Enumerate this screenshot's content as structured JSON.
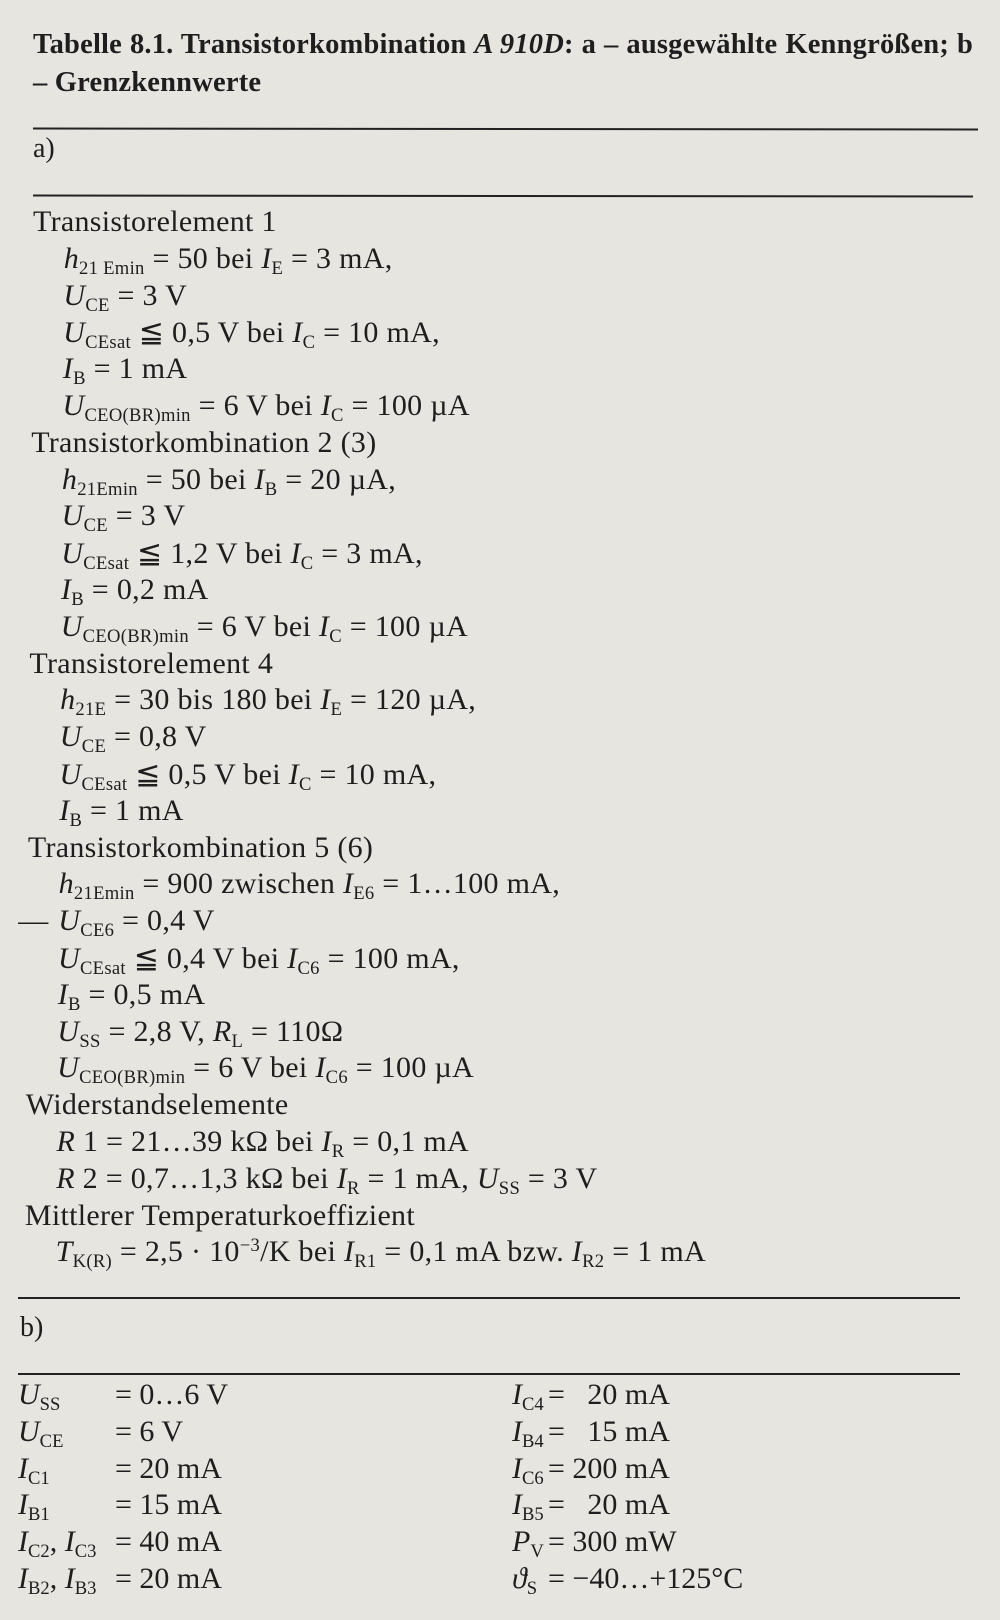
{
  "title": [
    [
      "b",
      "Tabelle 8.1.  Transistorkombination "
    ],
    [
      "bi",
      "A 910D"
    ],
    [
      "b",
      ": a – ausgewählte Kenngrößen; b – Grenzkennwerte"
    ]
  ],
  "part_a_label": "a)",
  "part_b_label": "b)",
  "part_a_lines": [
    {
      "level": 0,
      "segs": [
        [
          "n",
          "Transistorelement 1"
        ]
      ]
    },
    {
      "level": 1,
      "segs": [
        [
          "i",
          "h"
        ],
        [
          "s",
          "21 Emin"
        ],
        [
          "n",
          " = 50 bei "
        ],
        [
          "i",
          "I"
        ],
        [
          "s",
          "E"
        ],
        [
          "n",
          " = 3 mA,"
        ]
      ]
    },
    {
      "level": 1,
      "segs": [
        [
          "i",
          "U"
        ],
        [
          "s",
          "CE"
        ],
        [
          "n",
          " = 3 V"
        ]
      ]
    },
    {
      "level": 1,
      "segs": [
        [
          "i",
          "U"
        ],
        [
          "s",
          "CEsat"
        ],
        [
          "n",
          " ≦ 0,5 V bei "
        ],
        [
          "i",
          "I"
        ],
        [
          "s",
          "C"
        ],
        [
          "n",
          " = 10 mA,"
        ]
      ]
    },
    {
      "level": 1,
      "segs": [
        [
          "i",
          "I"
        ],
        [
          "s",
          "B"
        ],
        [
          "n",
          " = 1 mA"
        ]
      ]
    },
    {
      "level": 1,
      "segs": [
        [
          "i",
          "U"
        ],
        [
          "s",
          "CEO(BR)min"
        ],
        [
          "n",
          " = 6 V bei "
        ],
        [
          "i",
          "I"
        ],
        [
          "s",
          "C"
        ],
        [
          "n",
          " = 100 µA"
        ]
      ]
    },
    {
      "level": 0,
      "segs": [
        [
          "n",
          "Transistorkombination 2 (3)"
        ]
      ]
    },
    {
      "level": 1,
      "segs": [
        [
          "i",
          "h"
        ],
        [
          "s",
          "21Emin"
        ],
        [
          "n",
          " = 50 bei "
        ],
        [
          "i",
          "I"
        ],
        [
          "s",
          "B"
        ],
        [
          "n",
          " = 20 µA,"
        ]
      ]
    },
    {
      "level": 1,
      "segs": [
        [
          "i",
          "U"
        ],
        [
          "s",
          "CE"
        ],
        [
          "n",
          " = 3 V"
        ]
      ]
    },
    {
      "level": 1,
      "segs": [
        [
          "i",
          "U"
        ],
        [
          "s",
          "CEsat"
        ],
        [
          "n",
          " ≦ 1,2 V bei "
        ],
        [
          "i",
          "I"
        ],
        [
          "s",
          "C"
        ],
        [
          "n",
          " = 3 mA,"
        ]
      ]
    },
    {
      "level": 1,
      "segs": [
        [
          "i",
          "I"
        ],
        [
          "s",
          "B"
        ],
        [
          "n",
          " = 0,2 mA"
        ]
      ]
    },
    {
      "level": 1,
      "segs": [
        [
          "i",
          "U"
        ],
        [
          "s",
          "CEO(BR)min"
        ],
        [
          "n",
          " = 6 V bei "
        ],
        [
          "i",
          "I"
        ],
        [
          "s",
          "C"
        ],
        [
          "n",
          " = 100 µA"
        ]
      ]
    },
    {
      "level": 0,
      "segs": [
        [
          "n",
          "Transistorelement 4"
        ]
      ]
    },
    {
      "level": 1,
      "segs": [
        [
          "i",
          "h"
        ],
        [
          "s",
          "21E"
        ],
        [
          "n",
          " = 30 bis 180 bei "
        ],
        [
          "i",
          "I"
        ],
        [
          "s",
          "E"
        ],
        [
          "n",
          " = 120 µA,"
        ]
      ]
    },
    {
      "level": 1,
      "segs": [
        [
          "i",
          "U"
        ],
        [
          "s",
          "CE"
        ],
        [
          "n",
          " = 0,8 V"
        ]
      ]
    },
    {
      "level": 1,
      "segs": [
        [
          "i",
          "U"
        ],
        [
          "s",
          "CEsat"
        ],
        [
          "n",
          " ≦ 0,5 V bei "
        ],
        [
          "i",
          "I"
        ],
        [
          "s",
          "C"
        ],
        [
          "n",
          " = 10 mA,"
        ]
      ]
    },
    {
      "level": 1,
      "segs": [
        [
          "i",
          "I"
        ],
        [
          "s",
          "B"
        ],
        [
          "n",
          " = 1 mA"
        ]
      ]
    },
    {
      "level": 0,
      "segs": [
        [
          "n",
          "Transistorkombination 5 (6)"
        ]
      ]
    },
    {
      "level": 1,
      "segs": [
        [
          "i",
          "h"
        ],
        [
          "s",
          "21Emin"
        ],
        [
          "n",
          " = 900 zwischen "
        ],
        [
          "i",
          "I"
        ],
        [
          "s",
          "E6"
        ],
        [
          "n",
          " = 1…100 mA,"
        ]
      ]
    },
    {
      "level": 1,
      "dash": "—",
      "segs": [
        [
          "i",
          "U"
        ],
        [
          "s",
          "CE6"
        ],
        [
          "n",
          " = 0,4 V"
        ]
      ]
    },
    {
      "level": 1,
      "segs": [
        [
          "i",
          "U"
        ],
        [
          "s",
          "CEsat"
        ],
        [
          "n",
          " ≦ 0,4 V bei "
        ],
        [
          "i",
          "I"
        ],
        [
          "s",
          "C6"
        ],
        [
          "n",
          " = 100 mA,"
        ]
      ]
    },
    {
      "level": 1,
      "segs": [
        [
          "i",
          "I"
        ],
        [
          "s",
          "B"
        ],
        [
          "n",
          " = 0,5 mA"
        ]
      ]
    },
    {
      "level": 1,
      "segs": [
        [
          "i",
          "U"
        ],
        [
          "s",
          "SS"
        ],
        [
          "n",
          " = 2,8 V, "
        ],
        [
          "i",
          "R"
        ],
        [
          "s",
          "L"
        ],
        [
          "n",
          " = 110Ω"
        ]
      ]
    },
    {
      "level": 1,
      "segs": [
        [
          "i",
          "U"
        ],
        [
          "s",
          "CEO(BR)min"
        ],
        [
          "n",
          " = 6 V bei "
        ],
        [
          "i",
          "I"
        ],
        [
          "s",
          "C6"
        ],
        [
          "n",
          " = 100 µA"
        ]
      ]
    },
    {
      "level": 0,
      "segs": [
        [
          "n",
          "Widerstandselemente"
        ]
      ]
    },
    {
      "level": 1,
      "segs": [
        [
          "i",
          "R"
        ],
        [
          "n",
          " 1 = 21…39 kΩ bei "
        ],
        [
          "i",
          "I"
        ],
        [
          "s",
          "R"
        ],
        [
          "n",
          " = 0,1 mA"
        ]
      ]
    },
    {
      "level": 1,
      "segs": [
        [
          "i",
          "R"
        ],
        [
          "n",
          " 2 = 0,7…1,3 kΩ bei "
        ],
        [
          "i",
          "I"
        ],
        [
          "s",
          "R"
        ],
        [
          "n",
          " = 1 mA, "
        ],
        [
          "i",
          "U"
        ],
        [
          "s",
          "SS"
        ],
        [
          "n",
          " = 3 V"
        ]
      ]
    },
    {
      "level": 0,
      "segs": [
        [
          "n",
          "Mittlerer Temperaturkoeffizient"
        ]
      ]
    },
    {
      "level": 1,
      "segs": [
        [
          "i",
          "T"
        ],
        [
          "s",
          "K(R)"
        ],
        [
          "n",
          " = 2,5 · 10"
        ],
        [
          "p",
          "−3"
        ],
        [
          "n",
          "/K bei "
        ],
        [
          "i",
          "I"
        ],
        [
          "s",
          "R1"
        ],
        [
          "n",
          " = 0,1 mA bzw. "
        ],
        [
          "i",
          "I"
        ],
        [
          "s",
          "R2"
        ],
        [
          "n",
          " = 1 mA"
        ]
      ]
    }
  ],
  "part_b_left": [
    {
      "sym": [
        [
          "i",
          "U"
        ],
        [
          "s",
          "SS"
        ]
      ],
      "value": "= 0…6 V"
    },
    {
      "sym": [
        [
          "i",
          "U"
        ],
        [
          "s",
          "CE"
        ]
      ],
      "value": "= 6 V"
    },
    {
      "sym": [
        [
          "i",
          "I"
        ],
        [
          "s",
          "C1"
        ]
      ],
      "value": "= 20 mA"
    },
    {
      "sym": [
        [
          "i",
          "I"
        ],
        [
          "s",
          "B1"
        ]
      ],
      "value": "= 15 mA"
    },
    {
      "sym": [
        [
          "i",
          "I"
        ],
        [
          "s",
          "C2"
        ],
        [
          "n",
          ", "
        ],
        [
          "i",
          "I"
        ],
        [
          "s",
          "C3"
        ]
      ],
      "value": "= 40 mA"
    },
    {
      "sym": [
        [
          "i",
          "I"
        ],
        [
          "s",
          "B2"
        ],
        [
          "n",
          ", "
        ],
        [
          "i",
          "I"
        ],
        [
          "s",
          "B3"
        ]
      ],
      "value": "= 20 mA"
    }
  ],
  "part_b_right": [
    {
      "sym": [
        [
          "i",
          "I"
        ],
        [
          "s",
          "C4"
        ]
      ],
      "value": "=   20 mA"
    },
    {
      "sym": [
        [
          "i",
          "I"
        ],
        [
          "s",
          "B4"
        ]
      ],
      "value": "=   15 mA"
    },
    {
      "sym": [
        [
          "i",
          "I"
        ],
        [
          "s",
          "C6"
        ]
      ],
      "value": "= 200 mA"
    },
    {
      "sym": [
        [
          "i",
          "I"
        ],
        [
          "s",
          "B5"
        ]
      ],
      "value": "=   20 mA"
    },
    {
      "sym": [
        [
          "i",
          "P"
        ],
        [
          "s",
          "V"
        ]
      ],
      "value": "= 300 mW"
    },
    {
      "sym": [
        [
          "i",
          "ϑ"
        ],
        [
          "s",
          "S"
        ]
      ],
      "value": "= −40…+125°C"
    }
  ]
}
